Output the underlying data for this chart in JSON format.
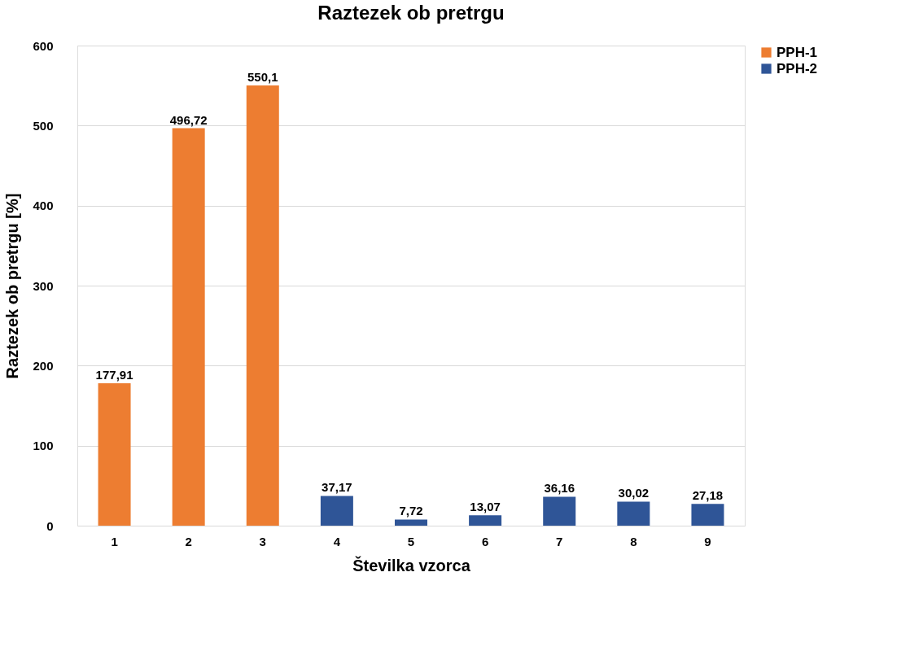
{
  "chart_data": {
    "type": "bar",
    "title": "Raztezek ob pretrgu",
    "xlabel": "Številka vzorca",
    "ylabel": "Raztezek ob pretrgu [%]",
    "categories": [
      "1",
      "2",
      "3",
      "4",
      "5",
      "6",
      "7",
      "8",
      "9"
    ],
    "series": [
      {
        "name": "PPH-1",
        "color": "#ed7d31",
        "values": [
          177.91,
          496.72,
          550.1,
          null,
          null,
          null,
          null,
          null,
          null
        ],
        "value_labels": [
          "177,91",
          "496,72",
          "550,1",
          null,
          null,
          null,
          null,
          null,
          null
        ]
      },
      {
        "name": "PPH-2",
        "color": "#2f5597",
        "values": [
          null,
          null,
          null,
          37.17,
          7.72,
          13.07,
          36.16,
          30.02,
          27.18
        ],
        "value_labels": [
          null,
          null,
          null,
          "37,17",
          "7,72",
          "13,07",
          "36,16",
          "30,02",
          "27,18"
        ]
      }
    ],
    "ylim": [
      0,
      600
    ],
    "yticks": [
      0,
      100,
      200,
      300,
      400,
      500,
      600
    ],
    "grid": "y",
    "legend": "right"
  }
}
